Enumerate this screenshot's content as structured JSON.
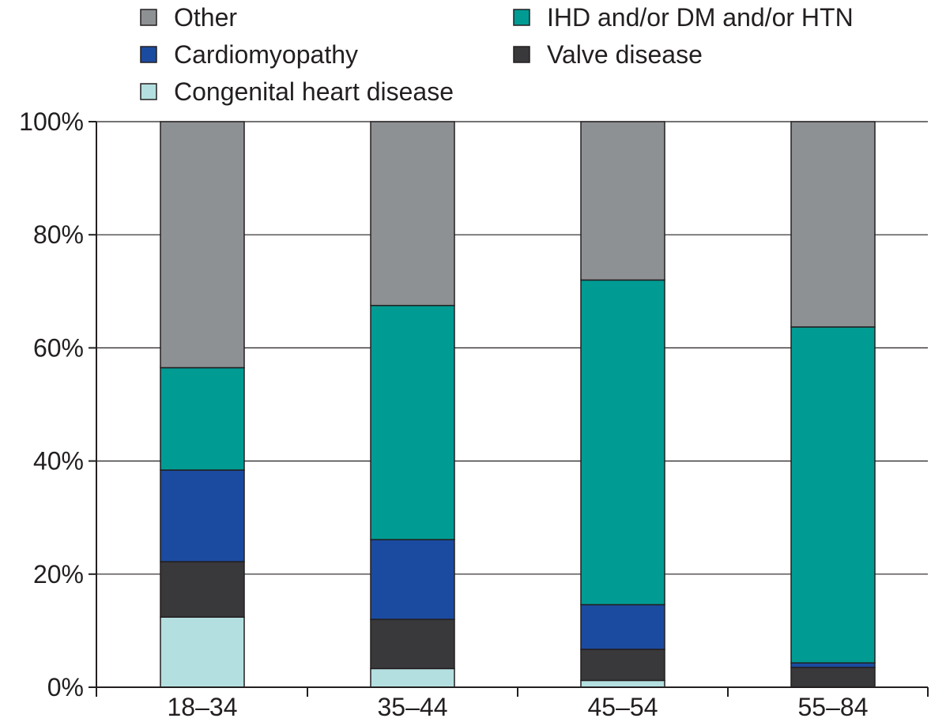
{
  "chart_data": {
    "type": "bar",
    "stacked": true,
    "normalized_percent": true,
    "title": "",
    "xlabel": "",
    "ylabel": "",
    "categories": [
      "18–34",
      "35–44",
      "45–54",
      "55–84"
    ],
    "ylim": [
      0,
      100
    ],
    "yticks": [
      0,
      20,
      40,
      60,
      80,
      100
    ],
    "ytick_labels": [
      "0%",
      "20%",
      "40%",
      "60%",
      "80%",
      "100%"
    ],
    "grid": "horizontal",
    "legend_position": "top",
    "series": [
      {
        "name": "Congenital heart disease",
        "color": "#b4dfe0",
        "values": [
          12.4,
          3.3,
          1.2,
          0.0
        ]
      },
      {
        "name": "Valve disease",
        "color": "#39383a",
        "values": [
          9.8,
          8.7,
          5.5,
          3.5
        ]
      },
      {
        "name": "Cardiomyopathy",
        "color": "#1b4ba0",
        "values": [
          16.2,
          14.1,
          7.9,
          0.8
        ]
      },
      {
        "name": "IHD and/or DM and/or HTN",
        "color": "#009c94",
        "values": [
          18.1,
          41.4,
          57.4,
          59.4
        ]
      },
      {
        "name": "Other",
        "color": "#8e9194",
        "values": [
          43.5,
          32.5,
          28.0,
          36.3
        ]
      }
    ]
  },
  "legend": {
    "items": [
      {
        "label": "Other",
        "color": "#8e9194"
      },
      {
        "label": "IHD and/or DM and/or HTN",
        "color": "#009c94"
      },
      {
        "label": "Cardiomyopathy",
        "color": "#1b4ba0"
      },
      {
        "label": "Valve disease",
        "color": "#39383a"
      },
      {
        "label": "Congenital heart disease",
        "color": "#b4dfe0"
      }
    ]
  }
}
